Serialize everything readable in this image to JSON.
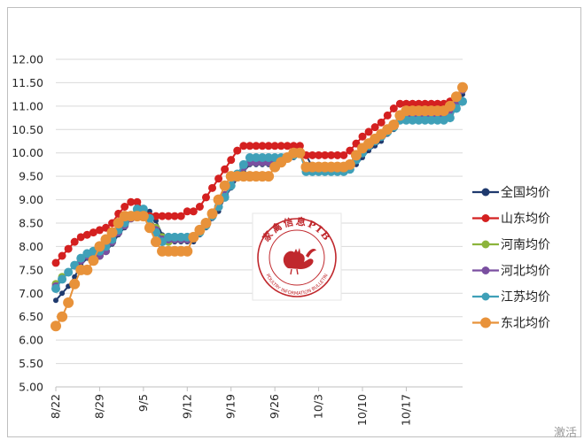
{
  "chart_data": {
    "type": "line",
    "title": "",
    "xlabel": "",
    "ylabel": "",
    "ylim": [
      5.0,
      12.0
    ],
    "y_ticks": [
      "12.00",
      "11.50",
      "11.00",
      "10.50",
      "10.00",
      "9.50",
      "9.00",
      "8.50",
      "8.00",
      "7.50",
      "7.00",
      "6.50",
      "6.00",
      "5.50",
      "5.00"
    ],
    "x_tick_labels": [
      "8/22",
      "8/29",
      "9/5",
      "9/12",
      "9/19",
      "9/26",
      "10/3",
      "10/10",
      "10/17"
    ],
    "x_start": "8/22",
    "n_points": 66,
    "series": [
      {
        "name": "全国均价",
        "color": "#1f3a6e",
        "values": [
          6.85,
          7.0,
          7.15,
          7.35,
          7.6,
          7.75,
          7.8,
          7.8,
          7.9,
          8.05,
          8.25,
          8.4,
          8.6,
          8.75,
          8.75,
          8.75,
          8.55,
          8.25,
          8.1,
          8.1,
          8.1,
          8.1,
          8.1,
          8.25,
          8.4,
          8.6,
          8.75,
          9.05,
          9.25,
          9.45,
          9.6,
          9.75,
          9.75,
          9.75,
          9.75,
          9.75,
          9.8,
          9.85,
          9.9,
          9.95,
          9.95,
          9.7,
          9.7,
          9.7,
          9.7,
          9.7,
          9.7,
          9.7,
          9.75,
          9.9,
          10.05,
          10.15,
          10.25,
          10.4,
          10.5,
          10.7,
          10.85,
          10.85,
          10.85,
          10.85,
          10.85,
          10.85,
          10.85,
          10.9,
          11.05,
          11.25
        ]
      },
      {
        "name": "山东均价",
        "color": "#d42020",
        "values": [
          7.65,
          7.8,
          7.95,
          8.1,
          8.2,
          8.25,
          8.3,
          8.35,
          8.4,
          8.5,
          8.7,
          8.85,
          8.95,
          8.95,
          8.8,
          8.65,
          8.65,
          8.65,
          8.65,
          8.65,
          8.65,
          8.75,
          8.75,
          8.85,
          9.05,
          9.25,
          9.45,
          9.65,
          9.85,
          10.05,
          10.15,
          10.15,
          10.15,
          10.15,
          10.15,
          10.15,
          10.15,
          10.15,
          10.15,
          10.15,
          9.95,
          9.95,
          9.95,
          9.95,
          9.95,
          9.95,
          9.95,
          10.05,
          10.2,
          10.35,
          10.45,
          10.55,
          10.65,
          10.8,
          10.95,
          11.05,
          11.05,
          11.05,
          11.05,
          11.05,
          11.05,
          11.05,
          11.05,
          11.1,
          11.2,
          11.4
        ]
      },
      {
        "name": "河南均价",
        "color": "#8cb43c",
        "values": [
          7.2,
          7.35,
          7.45,
          7.6,
          7.75,
          7.8,
          7.8,
          7.8,
          7.9,
          8.1,
          8.3,
          8.45,
          8.6,
          8.75,
          8.75,
          8.6,
          8.4,
          8.2,
          8.1,
          8.15,
          8.15,
          8.15,
          8.2,
          8.3,
          8.5,
          8.7,
          8.85,
          9.1,
          9.3,
          9.5,
          9.7,
          9.8,
          9.8,
          9.8,
          9.8,
          9.8,
          9.85,
          9.9,
          9.95,
          10.0,
          9.7,
          9.65,
          9.65,
          9.65,
          9.65,
          9.65,
          9.65,
          9.7,
          9.85,
          10.05,
          10.15,
          10.25,
          10.35,
          10.45,
          10.6,
          10.75,
          10.8,
          10.8,
          10.8,
          10.8,
          10.8,
          10.8,
          10.8,
          10.85,
          11.05,
          11.35
        ]
      },
      {
        "name": "河北均价",
        "color": "#7a4fa0",
        "values": [
          7.15,
          7.3,
          7.45,
          7.6,
          7.7,
          7.8,
          7.8,
          7.8,
          7.9,
          8.1,
          8.3,
          8.45,
          8.6,
          8.7,
          8.7,
          8.6,
          8.35,
          8.15,
          8.15,
          8.15,
          8.15,
          8.15,
          8.2,
          8.3,
          8.45,
          8.65,
          8.85,
          9.1,
          9.3,
          9.5,
          9.7,
          9.8,
          9.8,
          9.8,
          9.8,
          9.8,
          9.85,
          9.9,
          9.95,
          10.0,
          9.7,
          9.65,
          9.65,
          9.65,
          9.65,
          9.65,
          9.65,
          9.7,
          9.85,
          10.05,
          10.15,
          10.25,
          10.35,
          10.45,
          10.6,
          10.75,
          10.8,
          10.8,
          10.8,
          10.8,
          10.8,
          10.8,
          10.8,
          10.85,
          11.05,
          11.35
        ]
      },
      {
        "name": "江苏均价",
        "color": "#3fa0b8",
        "values": [
          7.1,
          7.3,
          7.45,
          7.6,
          7.75,
          7.85,
          7.9,
          7.9,
          8.0,
          8.15,
          8.35,
          8.5,
          8.65,
          8.8,
          8.8,
          8.6,
          8.3,
          8.1,
          8.2,
          8.2,
          8.2,
          8.2,
          8.2,
          8.3,
          8.45,
          8.65,
          8.85,
          9.05,
          9.3,
          9.55,
          9.75,
          9.9,
          9.9,
          9.9,
          9.9,
          9.9,
          9.9,
          9.9,
          9.95,
          10.0,
          9.6,
          9.6,
          9.6,
          9.6,
          9.6,
          9.6,
          9.6,
          9.65,
          9.85,
          10.0,
          10.15,
          10.25,
          10.35,
          10.45,
          10.55,
          10.7,
          10.7,
          10.7,
          10.7,
          10.7,
          10.7,
          10.7,
          10.7,
          10.75,
          10.95,
          11.1
        ]
      },
      {
        "name": "东北均价",
        "color": "#e8923a",
        "values": [
          6.3,
          6.5,
          6.8,
          7.2,
          7.5,
          7.5,
          7.7,
          8.0,
          8.15,
          8.3,
          8.5,
          8.65,
          8.65,
          8.65,
          8.65,
          8.4,
          8.1,
          7.9,
          7.9,
          7.9,
          7.9,
          7.9,
          8.2,
          8.35,
          8.5,
          8.7,
          9.0,
          9.3,
          9.5,
          9.5,
          9.5,
          9.5,
          9.5,
          9.5,
          9.5,
          9.7,
          9.8,
          9.9,
          10.0,
          10.0,
          9.7,
          9.7,
          9.7,
          9.7,
          9.7,
          9.7,
          9.7,
          9.75,
          9.95,
          10.1,
          10.2,
          10.3,
          10.4,
          10.5,
          10.6,
          10.8,
          10.9,
          10.9,
          10.9,
          10.9,
          10.9,
          10.9,
          10.9,
          11.0,
          11.2,
          11.4
        ]
      }
    ],
    "legend_position": "right"
  },
  "watermark": {
    "title_text": "家禽信息PIB",
    "subtitle_text": "POULTRY INFORMATION BULLETIN",
    "color": "#c0282d"
  },
  "corner_mark": "激活"
}
